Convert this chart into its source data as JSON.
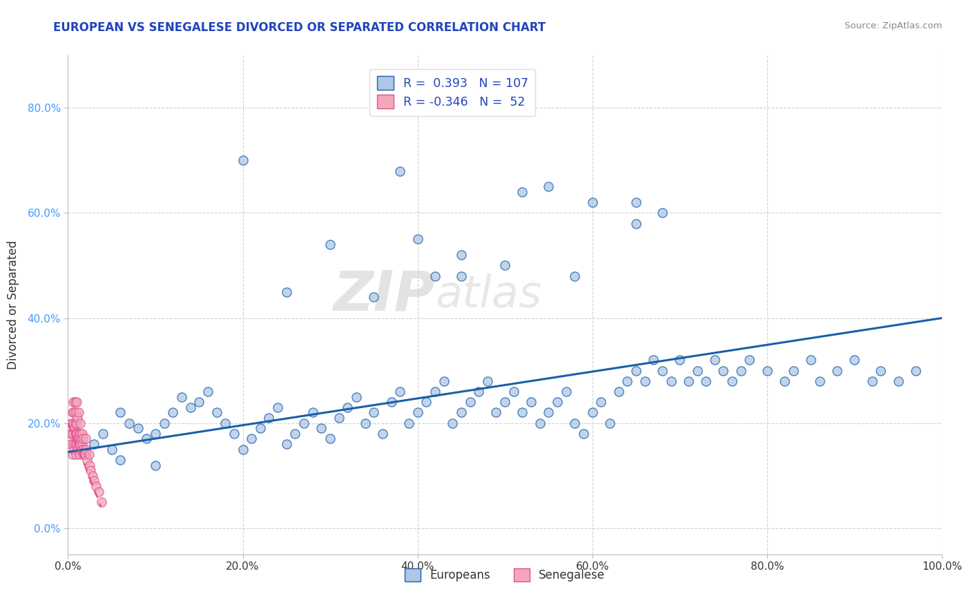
{
  "title": "EUROPEAN VS SENEGALESE DIVORCED OR SEPARATED CORRELATION CHART",
  "source": "Source: ZipAtlas.com",
  "ylabel_label": "Divorced or Separated",
  "xlim": [
    0,
    1.0
  ],
  "ylim": [
    -0.05,
    0.9
  ],
  "yticks": [
    0.0,
    0.2,
    0.4,
    0.6,
    0.8
  ],
  "ytick_labels": [
    "0.0%",
    "20.0%",
    "40.0%",
    "60.0%",
    "80.0%"
  ],
  "xticks": [
    0.0,
    0.2,
    0.4,
    0.6,
    0.8,
    1.0
  ],
  "xtick_labels": [
    "0.0%",
    "20.0%",
    "40.0%",
    "60.0%",
    "80.0%",
    "100.0%"
  ],
  "legend_r_european": "0.393",
  "legend_n_european": "107",
  "legend_r_senegalese": "-0.346",
  "legend_n_senegalese": "52",
  "european_color": "#aec6e8",
  "senegalese_color": "#f4a7b9",
  "european_line_color": "#1a5fa8",
  "senegalese_line_color": "#e05090",
  "watermark_zip": "ZIP",
  "watermark_atlas": "atlas",
  "background_color": "#ffffff",
  "grid_color": "#cccccc",
  "title_color": "#2244bb",
  "annotation_color": "#2244bb",
  "european_scatter_x": [
    0.02,
    0.03,
    0.04,
    0.05,
    0.06,
    0.06,
    0.07,
    0.08,
    0.09,
    0.1,
    0.1,
    0.11,
    0.12,
    0.13,
    0.14,
    0.15,
    0.16,
    0.17,
    0.18,
    0.19,
    0.2,
    0.21,
    0.22,
    0.23,
    0.24,
    0.25,
    0.26,
    0.27,
    0.28,
    0.29,
    0.3,
    0.31,
    0.32,
    0.33,
    0.34,
    0.35,
    0.36,
    0.37,
    0.38,
    0.39,
    0.4,
    0.41,
    0.42,
    0.43,
    0.44,
    0.45,
    0.46,
    0.47,
    0.48,
    0.49,
    0.5,
    0.51,
    0.52,
    0.53,
    0.54,
    0.55,
    0.56,
    0.57,
    0.58,
    0.59,
    0.6,
    0.61,
    0.62,
    0.63,
    0.64,
    0.65,
    0.66,
    0.67,
    0.68,
    0.69,
    0.7,
    0.71,
    0.72,
    0.73,
    0.74,
    0.75,
    0.76,
    0.77,
    0.78,
    0.8,
    0.82,
    0.83,
    0.85,
    0.86,
    0.88,
    0.9,
    0.92,
    0.93,
    0.95,
    0.97,
    0.3,
    0.35,
    0.4,
    0.42,
    0.45,
    0.5,
    0.55,
    0.6,
    0.65,
    0.68,
    0.2,
    0.25,
    0.38,
    0.45,
    0.52,
    0.58,
    0.65
  ],
  "european_scatter_y": [
    0.14,
    0.16,
    0.18,
    0.15,
    0.13,
    0.22,
    0.2,
    0.19,
    0.17,
    0.18,
    0.12,
    0.2,
    0.22,
    0.25,
    0.23,
    0.24,
    0.26,
    0.22,
    0.2,
    0.18,
    0.15,
    0.17,
    0.19,
    0.21,
    0.23,
    0.16,
    0.18,
    0.2,
    0.22,
    0.19,
    0.17,
    0.21,
    0.23,
    0.25,
    0.2,
    0.22,
    0.18,
    0.24,
    0.26,
    0.2,
    0.22,
    0.24,
    0.26,
    0.28,
    0.2,
    0.22,
    0.24,
    0.26,
    0.28,
    0.22,
    0.24,
    0.26,
    0.22,
    0.24,
    0.2,
    0.22,
    0.24,
    0.26,
    0.2,
    0.18,
    0.22,
    0.24,
    0.2,
    0.26,
    0.28,
    0.3,
    0.28,
    0.32,
    0.3,
    0.28,
    0.32,
    0.28,
    0.3,
    0.28,
    0.32,
    0.3,
    0.28,
    0.3,
    0.32,
    0.3,
    0.28,
    0.3,
    0.32,
    0.28,
    0.3,
    0.32,
    0.28,
    0.3,
    0.28,
    0.3,
    0.54,
    0.44,
    0.55,
    0.48,
    0.52,
    0.5,
    0.65,
    0.62,
    0.58,
    0.6,
    0.7,
    0.45,
    0.68,
    0.48,
    0.64,
    0.48,
    0.62
  ],
  "senegalese_scatter_x": [
    0.003,
    0.004,
    0.004,
    0.005,
    0.005,
    0.005,
    0.006,
    0.006,
    0.006,
    0.007,
    0.007,
    0.007,
    0.008,
    0.008,
    0.008,
    0.008,
    0.009,
    0.009,
    0.009,
    0.01,
    0.01,
    0.01,
    0.01,
    0.011,
    0.011,
    0.011,
    0.012,
    0.012,
    0.012,
    0.013,
    0.013,
    0.014,
    0.014,
    0.015,
    0.015,
    0.016,
    0.016,
    0.017,
    0.017,
    0.018,
    0.019,
    0.02,
    0.02,
    0.022,
    0.024,
    0.025,
    0.026,
    0.028,
    0.03,
    0.032,
    0.035,
    0.038
  ],
  "senegalese_scatter_y": [
    0.16,
    0.18,
    0.2,
    0.14,
    0.18,
    0.22,
    0.16,
    0.2,
    0.24,
    0.15,
    0.19,
    0.22,
    0.16,
    0.18,
    0.2,
    0.24,
    0.14,
    0.18,
    0.22,
    0.16,
    0.18,
    0.2,
    0.24,
    0.15,
    0.17,
    0.21,
    0.16,
    0.18,
    0.22,
    0.14,
    0.16,
    0.18,
    0.2,
    0.15,
    0.17,
    0.16,
    0.18,
    0.15,
    0.17,
    0.14,
    0.14,
    0.15,
    0.17,
    0.13,
    0.14,
    0.12,
    0.11,
    0.1,
    0.09,
    0.08,
    0.07,
    0.05
  ],
  "european_trend_x": [
    0.0,
    1.0
  ],
  "european_trend_y": [
    0.145,
    0.4
  ],
  "senegalese_trend_x": [
    0.0,
    0.038
  ],
  "senegalese_trend_y": [
    0.2,
    0.04
  ],
  "senegalese_trend_dash": [
    6,
    4
  ]
}
